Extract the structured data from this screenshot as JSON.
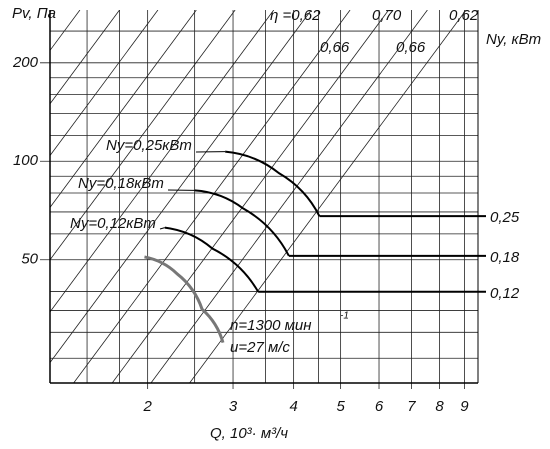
{
  "chart_data": {
    "type": "line",
    "log_x": true,
    "log_y": true,
    "ylabel": "Pv, Па",
    "y2label": "Ny, кВт",
    "xlabel": "Q, 10³· м³/ч",
    "xlim": [
      1.258,
      9.6
    ],
    "ylim": [
      21,
      290
    ],
    "xticks": [
      2,
      3,
      4,
      5,
      6,
      7,
      8,
      9
    ],
    "yticks": [
      50,
      100,
      200
    ],
    "xminor": [
      1.5,
      1.75,
      2.5,
      3.5,
      4.5
    ],
    "yminor": [
      25,
      30,
      35,
      40,
      60,
      70,
      80,
      90,
      120,
      140,
      160,
      180,
      250
    ],
    "grid": true,
    "diagonals": {
      "slope": 2,
      "q_at_top": [
        1.45,
        1.75,
        2.1,
        2.52,
        3.03,
        3.64,
        4.35,
        5.23,
        6.28,
        7.55,
        9.07
      ]
    },
    "efficiency_labels": [
      "η =0,62",
      "0,66",
      "0,70",
      "0,66",
      "0,62"
    ],
    "series": [
      {
        "name": "Ny=0,25кВт",
        "end_label": "0,25",
        "color": "#000000",
        "x": [
          2.89,
          3.73,
          4.52
        ],
        "values": [
          107,
          92,
          68
        ]
      },
      {
        "name": "Ny=0,18кВт",
        "end_label": "0,18",
        "color": "#000000",
        "x": [
          2.5,
          3.15,
          3.91
        ],
        "values": [
          81.5,
          71.7,
          51.4
        ]
      },
      {
        "name": "Ny=0,12кВт",
        "end_label": "0,12",
        "color": "#000000",
        "x": [
          2.17,
          2.72,
          3.38
        ],
        "values": [
          62.7,
          54.1,
          39.9
        ]
      },
      {
        "name": "n=1300 мин",
        "color": "#777777",
        "x": [
          1.97,
          2.3,
          2.59,
          2.86
        ],
        "values": [
          51,
          45.3,
          35.3,
          27.9
        ]
      }
    ],
    "annotation_sup": "-1",
    "annotation2": "u=27 м/с"
  }
}
